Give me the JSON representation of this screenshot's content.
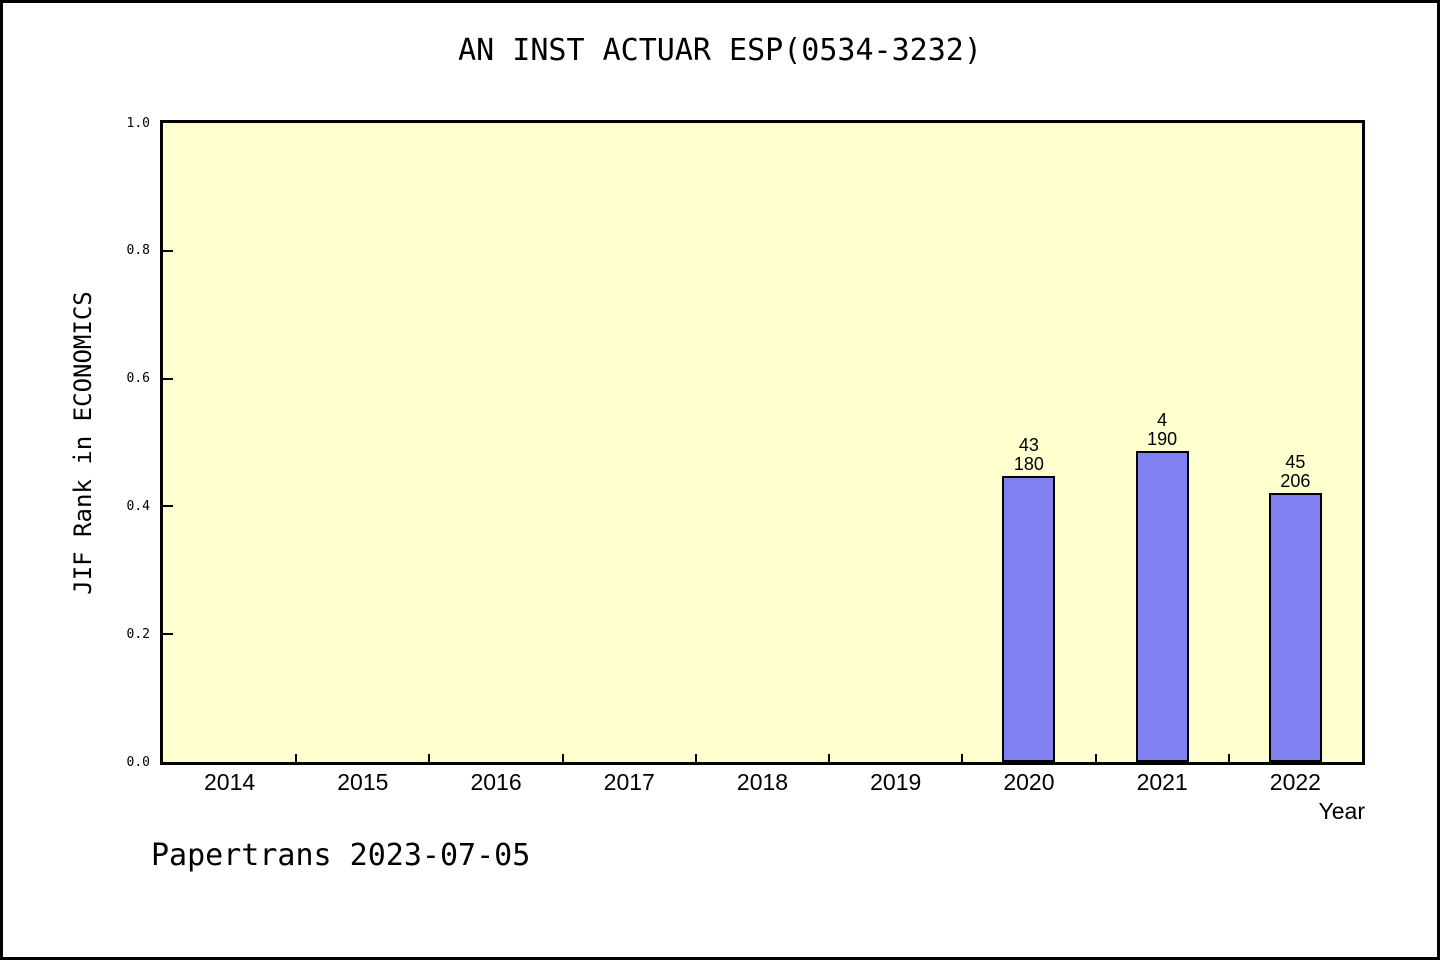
{
  "page": {
    "footer": "Papertrans 2023-07-05"
  },
  "chart_data": {
    "type": "bar",
    "title": "AN INST ACTUAR ESP(0534-3232)",
    "xlabel": "Year",
    "ylabel": "JIF Rank in ECONOMICS",
    "ylim": [
      0.0,
      1.0
    ],
    "ytick_labels": [
      "0.0",
      "0.2",
      "0.4",
      "0.6",
      "0.8",
      "1.0"
    ],
    "ytick_values": [
      0.0,
      0.2,
      0.4,
      0.6,
      0.8,
      1.0
    ],
    "categories": [
      "2014",
      "2015",
      "2016",
      "2017",
      "2018",
      "2019",
      "2020",
      "2021",
      "2022"
    ],
    "values": [
      null,
      null,
      null,
      null,
      null,
      null,
      0.447,
      0.486,
      0.421
    ],
    "bar_labels": [
      null,
      null,
      null,
      null,
      null,
      null,
      {
        "rank": "43",
        "total": "180"
      },
      {
        "rank": "4",
        "total": "190"
      },
      {
        "rank": "45",
        "total": "206"
      }
    ],
    "legend": null,
    "grid": false,
    "colors": {
      "bar_fill": "#8080F0",
      "bar_border": "#000000",
      "plot_bg": "#FFFFD0",
      "page_bg": "#FFFFFF",
      "axis": "#000000",
      "text": "#000000"
    }
  }
}
